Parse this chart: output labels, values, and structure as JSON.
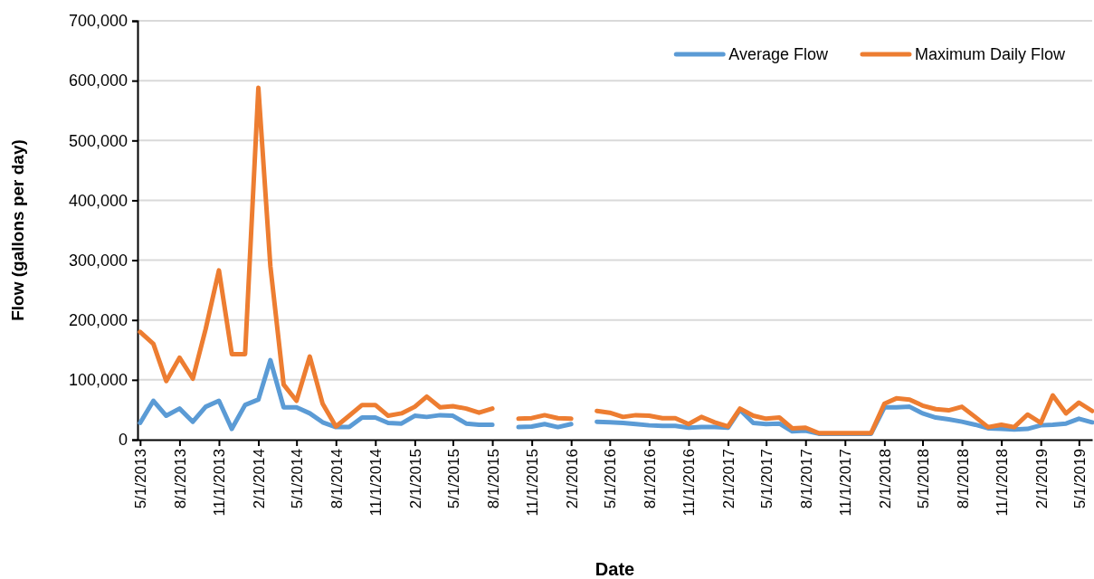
{
  "chart_data": {
    "type": "line",
    "xlabel": "Date",
    "ylabel": "Flow (gallons per day)",
    "x": [
      "2013-05",
      "2013-06",
      "2013-07",
      "2013-08",
      "2013-09",
      "2013-10",
      "2013-11",
      "2013-12",
      "2014-01",
      "2014-02",
      "2014-03",
      "2014-04",
      "2014-05",
      "2014-06",
      "2014-07",
      "2014-08",
      "2014-09",
      "2014-10",
      "2014-11",
      "2014-12",
      "2015-01",
      "2015-02",
      "2015-03",
      "2015-04",
      "2015-05",
      "2015-06",
      "2015-07",
      "2015-08",
      "2015-09",
      "2015-10",
      "2015-11",
      "2015-12",
      "2016-01",
      "2016-02",
      "2016-03",
      "2016-04",
      "2016-05",
      "2016-06",
      "2016-07",
      "2016-08",
      "2016-09",
      "2016-10",
      "2016-11",
      "2016-12",
      "2017-01",
      "2017-02",
      "2017-03",
      "2017-04",
      "2017-05",
      "2017-06",
      "2017-07",
      "2017-08",
      "2017-09",
      "2017-10",
      "2017-11",
      "2017-12",
      "2018-01",
      "2018-02",
      "2018-03",
      "2018-04",
      "2018-05",
      "2018-06",
      "2018-07",
      "2018-08",
      "2018-09",
      "2018-10",
      "2018-11",
      "2018-12",
      "2019-01",
      "2019-02",
      "2019-03",
      "2019-04",
      "2019-05",
      "2019-06"
    ],
    "series": [
      {
        "name": "Average Flow",
        "color": "#5b9bd5",
        "values": [
          28000,
          65000,
          40000,
          52000,
          30000,
          55000,
          65000,
          18000,
          58000,
          67000,
          133000,
          54000,
          54000,
          44000,
          29000,
          21000,
          21000,
          37000,
          37000,
          28000,
          27000,
          40000,
          38000,
          41000,
          40000,
          27000,
          25000,
          25000,
          null,
          21000,
          22000,
          26000,
          21000,
          26000,
          null,
          30000,
          29000,
          28000,
          26000,
          24000,
          23000,
          23000,
          20000,
          21000,
          21000,
          20000,
          50000,
          28000,
          26000,
          27000,
          14000,
          15000,
          10000,
          10000,
          10000,
          10000,
          10000,
          54000,
          54000,
          55000,
          44000,
          37000,
          34000,
          30000,
          25000,
          19000,
          18000,
          17000,
          18000,
          24000,
          25000,
          27000,
          35000,
          29000
        ]
      },
      {
        "name": "Maximum Daily Flow",
        "color": "#ed7d31",
        "values": [
          180000,
          160000,
          98000,
          137000,
          102000,
          185000,
          283000,
          143000,
          143000,
          588000,
          290000,
          92000,
          65000,
          139000,
          60000,
          22000,
          40000,
          58000,
          58000,
          40000,
          44000,
          55000,
          72000,
          54000,
          56000,
          52000,
          45000,
          52000,
          null,
          35000,
          36000,
          41000,
          36000,
          35000,
          null,
          48000,
          45000,
          38000,
          41000,
          40000,
          36000,
          36000,
          26000,
          38000,
          29000,
          22000,
          52000,
          40000,
          35000,
          37000,
          19000,
          20000,
          11000,
          11000,
          11000,
          11000,
          11000,
          60000,
          69000,
          67000,
          57000,
          51000,
          49000,
          55000,
          38000,
          21000,
          25000,
          21000,
          42000,
          28000,
          74000,
          44000,
          62000,
          48000
        ]
      }
    ],
    "xlim": [
      "2013-04-25",
      "2019-06-01"
    ],
    "xticks": [
      {
        "value": "2013-05",
        "label": "5/1/2013"
      },
      {
        "value": "2013-08",
        "label": "8/1/2013"
      },
      {
        "value": "2013-11",
        "label": "11/1/2013"
      },
      {
        "value": "2014-02",
        "label": "2/1/2014"
      },
      {
        "value": "2014-05",
        "label": "5/1/2014"
      },
      {
        "value": "2014-08",
        "label": "8/1/2014"
      },
      {
        "value": "2014-11",
        "label": "11/1/2014"
      },
      {
        "value": "2015-02",
        "label": "2/1/2015"
      },
      {
        "value": "2015-05",
        "label": "5/1/2015"
      },
      {
        "value": "2015-08",
        "label": "8/1/2015"
      },
      {
        "value": "2015-11",
        "label": "11/1/2015"
      },
      {
        "value": "2016-02",
        "label": "2/1/2016"
      },
      {
        "value": "2016-05",
        "label": "5/1/2016"
      },
      {
        "value": "2016-08",
        "label": "8/1/2016"
      },
      {
        "value": "2016-11",
        "label": "11/1/2016"
      },
      {
        "value": "2017-02",
        "label": "2/1/2017"
      },
      {
        "value": "2017-05",
        "label": "5/1/2017"
      },
      {
        "value": "2017-08",
        "label": "8/1/2017"
      },
      {
        "value": "2017-11",
        "label": "11/1/2017"
      },
      {
        "value": "2018-02",
        "label": "2/1/2018"
      },
      {
        "value": "2018-05",
        "label": "5/1/2018"
      },
      {
        "value": "2018-08",
        "label": "8/1/2018"
      },
      {
        "value": "2018-11",
        "label": "11/1/2018"
      },
      {
        "value": "2019-02",
        "label": "2/1/2019"
      },
      {
        "value": "2019-05",
        "label": "5/1/2019"
      }
    ],
    "ylim": [
      0,
      700000
    ],
    "yticks": [
      {
        "value": 0,
        "label": "0"
      },
      {
        "value": 100000,
        "label": "100,000"
      },
      {
        "value": 200000,
        "label": "200,000"
      },
      {
        "value": 300000,
        "label": "300,000"
      },
      {
        "value": 400000,
        "label": "400,000"
      },
      {
        "value": 500000,
        "label": "500,000"
      },
      {
        "value": 600000,
        "label": "600,000"
      },
      {
        "value": 700000,
        "label": "700,000"
      }
    ],
    "grid": "y",
    "legend": "top right"
  }
}
